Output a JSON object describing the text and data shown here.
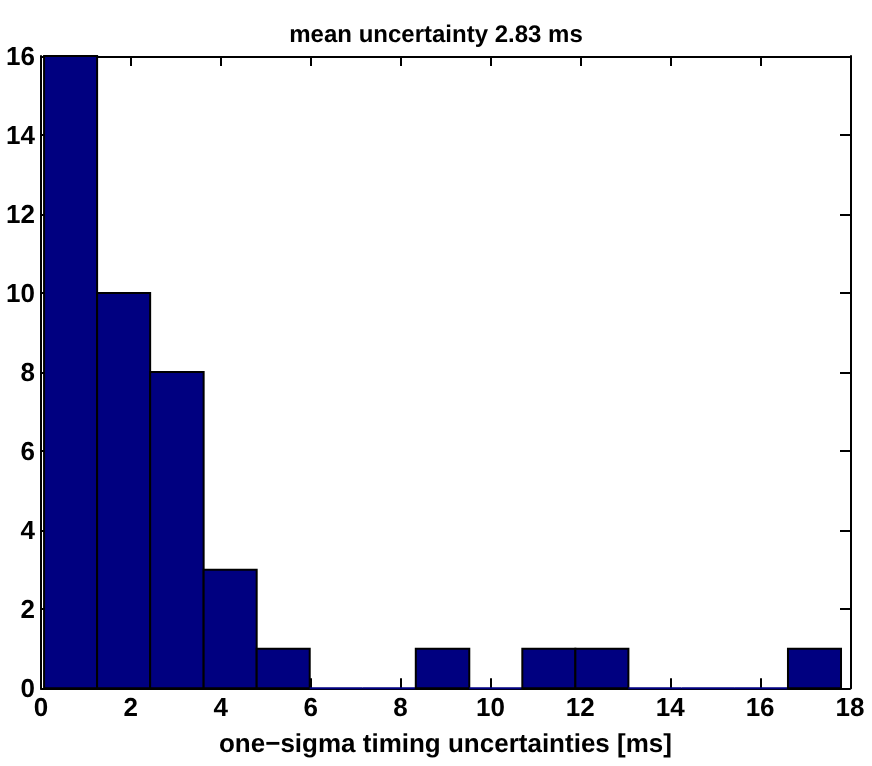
{
  "chart_data": {
    "type": "histogram",
    "title": "mean uncertainty 2.83 ms",
    "xlabel": "one−sigma timing uncertainties [ms]",
    "bins": [
      0.07,
      1.25,
      2.43,
      3.62,
      4.8,
      5.98,
      7.16,
      8.34,
      9.53,
      10.71,
      11.89,
      13.07,
      14.25,
      15.44,
      16.62,
      17.8
    ],
    "values": [
      16,
      10,
      8,
      3,
      1,
      0,
      0,
      1,
      0,
      1,
      1,
      0,
      0,
      0,
      1
    ],
    "color": "#000080",
    "xlim": [
      0,
      18
    ],
    "xticks": [
      0,
      2,
      4,
      6,
      8,
      10,
      12,
      14,
      16,
      18
    ],
    "ylim": [
      0,
      16
    ],
    "yticks": [
      0,
      2,
      4,
      6,
      8,
      10,
      12,
      14,
      16
    ],
    "grid": false
  }
}
